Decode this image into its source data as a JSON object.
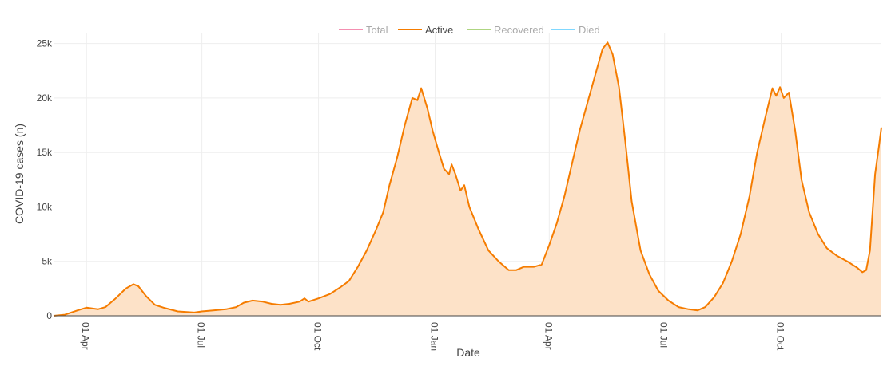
{
  "chart_data": {
    "type": "area",
    "xlabel": "Date",
    "ylabel": "COVID-19 cases (n)",
    "x_range": [
      "2020-03-06",
      "2021-12-19"
    ],
    "ylim": [
      0,
      26000
    ],
    "y_ticks": [
      {
        "value": 0,
        "label": "0"
      },
      {
        "value": 5000,
        "label": "5k"
      },
      {
        "value": 10000,
        "label": "10k"
      },
      {
        "value": 15000,
        "label": "15k"
      },
      {
        "value": 20000,
        "label": "20k"
      },
      {
        "value": 25000,
        "label": "25k"
      }
    ],
    "x_ticks": [
      {
        "date": "2020-04-01",
        "label": "01 Apr"
      },
      {
        "date": "2020-07-01",
        "label": "01 Jul"
      },
      {
        "date": "2020-10-01",
        "label": "01 Oct"
      },
      {
        "date": "2021-01-01",
        "label": "01 Jan"
      },
      {
        "date": "2021-04-01",
        "label": "01 Apr"
      },
      {
        "date": "2021-07-01",
        "label": "01 Jul"
      },
      {
        "date": "2021-10-01",
        "label": "01 Oct"
      }
    ],
    "grid": true,
    "legend": {
      "position": "top-center",
      "items": [
        {
          "name": "Total",
          "color": "#f48fb1",
          "active": false
        },
        {
          "name": "Active",
          "color": "#f57c00",
          "active": true
        },
        {
          "name": "Recovered",
          "color": "#aed581",
          "active": false
        },
        {
          "name": "Died",
          "color": "#80d8ff",
          "active": false
        }
      ]
    },
    "series": [
      {
        "name": "Active",
        "color": "#f57c00",
        "fill": "#fde2c8",
        "points": [
          [
            "2020-03-06",
            0
          ],
          [
            "2020-03-15",
            100
          ],
          [
            "2020-03-25",
            500
          ],
          [
            "2020-04-01",
            750
          ],
          [
            "2020-04-10",
            600
          ],
          [
            "2020-04-16",
            800
          ],
          [
            "2020-04-24",
            1600
          ],
          [
            "2020-05-02",
            2500
          ],
          [
            "2020-05-08",
            2900
          ],
          [
            "2020-05-12",
            2700
          ],
          [
            "2020-05-18",
            1800
          ],
          [
            "2020-05-25",
            1000
          ],
          [
            "2020-06-02",
            700
          ],
          [
            "2020-06-12",
            400
          ],
          [
            "2020-06-25",
            300
          ],
          [
            "2020-07-01",
            400
          ],
          [
            "2020-07-10",
            500
          ],
          [
            "2020-07-20",
            600
          ],
          [
            "2020-07-28",
            800
          ],
          [
            "2020-08-03",
            1200
          ],
          [
            "2020-08-10",
            1400
          ],
          [
            "2020-08-18",
            1300
          ],
          [
            "2020-08-25",
            1100
          ],
          [
            "2020-09-01",
            1000
          ],
          [
            "2020-09-08",
            1100
          ],
          [
            "2020-09-16",
            1300
          ],
          [
            "2020-09-20",
            1600
          ],
          [
            "2020-09-23",
            1300
          ],
          [
            "2020-10-01",
            1600
          ],
          [
            "2020-10-10",
            2000
          ],
          [
            "2020-10-18",
            2600
          ],
          [
            "2020-10-25",
            3200
          ],
          [
            "2020-11-01",
            4500
          ],
          [
            "2020-11-08",
            6000
          ],
          [
            "2020-11-15",
            7800
          ],
          [
            "2020-11-21",
            9500
          ],
          [
            "2020-11-26",
            12000
          ],
          [
            "2020-12-02",
            14500
          ],
          [
            "2020-12-08",
            17500
          ],
          [
            "2020-12-14",
            20000
          ],
          [
            "2020-12-18",
            19800
          ],
          [
            "2020-12-21",
            20900
          ],
          [
            "2020-12-26",
            19000
          ],
          [
            "2020-12-30",
            17000
          ],
          [
            "2021-01-04",
            15000
          ],
          [
            "2021-01-08",
            13500
          ],
          [
            "2021-01-12",
            13000
          ],
          [
            "2021-01-14",
            13900
          ],
          [
            "2021-01-17",
            13000
          ],
          [
            "2021-01-21",
            11500
          ],
          [
            "2021-01-24",
            12000
          ],
          [
            "2021-01-28",
            10000
          ],
          [
            "2021-02-04",
            8000
          ],
          [
            "2021-02-12",
            6000
          ],
          [
            "2021-02-20",
            5000
          ],
          [
            "2021-02-28",
            4200
          ],
          [
            "2021-03-06",
            4200
          ],
          [
            "2021-03-12",
            4500
          ],
          [
            "2021-03-20",
            4500
          ],
          [
            "2021-03-26",
            4700
          ],
          [
            "2021-04-01",
            6500
          ],
          [
            "2021-04-07",
            8500
          ],
          [
            "2021-04-13",
            11000
          ],
          [
            "2021-04-19",
            14000
          ],
          [
            "2021-04-25",
            17000
          ],
          [
            "2021-05-01",
            19500
          ],
          [
            "2021-05-07",
            22000
          ],
          [
            "2021-05-13",
            24500
          ],
          [
            "2021-05-17",
            25100
          ],
          [
            "2021-05-21",
            24000
          ],
          [
            "2021-05-26",
            21000
          ],
          [
            "2021-05-31",
            16000
          ],
          [
            "2021-06-05",
            10500
          ],
          [
            "2021-06-12",
            6000
          ],
          [
            "2021-06-19",
            3800
          ],
          [
            "2021-06-26",
            2300
          ],
          [
            "2021-07-04",
            1400
          ],
          [
            "2021-07-12",
            800
          ],
          [
            "2021-07-20",
            600
          ],
          [
            "2021-07-27",
            500
          ],
          [
            "2021-08-02",
            800
          ],
          [
            "2021-08-09",
            1700
          ],
          [
            "2021-08-16",
            3000
          ],
          [
            "2021-08-23",
            5000
          ],
          [
            "2021-08-30",
            7500
          ],
          [
            "2021-09-06",
            11000
          ],
          [
            "2021-09-12",
            15000
          ],
          [
            "2021-09-18",
            18000
          ],
          [
            "2021-09-24",
            20900
          ],
          [
            "2021-09-27",
            20200
          ],
          [
            "2021-09-30",
            21000
          ],
          [
            "2021-10-03",
            20000
          ],
          [
            "2021-10-07",
            20500
          ],
          [
            "2021-10-12",
            17000
          ],
          [
            "2021-10-17",
            12500
          ],
          [
            "2021-10-23",
            9500
          ],
          [
            "2021-10-30",
            7500
          ],
          [
            "2021-11-06",
            6200
          ],
          [
            "2021-11-14",
            5500
          ],
          [
            "2021-11-22",
            5000
          ],
          [
            "2021-11-30",
            4400
          ],
          [
            "2021-12-04",
            4000
          ],
          [
            "2021-12-07",
            4200
          ],
          [
            "2021-12-10",
            6000
          ],
          [
            "2021-12-14",
            13000
          ],
          [
            "2021-12-17",
            15500
          ],
          [
            "2021-12-19",
            17300
          ]
        ]
      }
    ]
  }
}
